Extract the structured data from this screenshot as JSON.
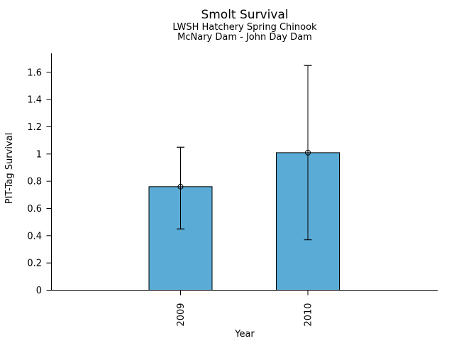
{
  "window": {
    "background": "#ffffff"
  },
  "chart_data": {
    "type": "bar",
    "title": "Smolt Survival",
    "subtitles": [
      "LWSH Hatchery Spring Chinook",
      "McNary Dam - John Day Dam"
    ],
    "xlabel": "Year",
    "ylabel": "PIT-Tag Survival",
    "categories": [
      "2009",
      "2010"
    ],
    "values": [
      0.76,
      1.01
    ],
    "error_low": [
      0.45,
      0.37
    ],
    "error_high": [
      1.05,
      1.65
    ],
    "marker": "open-circle",
    "y_tick_values": [
      0,
      0.2,
      0.4,
      0.6,
      0.8,
      1.0,
      1.2,
      1.4,
      1.6
    ],
    "y_tick_labels": [
      "0",
      "0.2",
      "0.4",
      "0.6",
      "0.8",
      "1",
      "1.2",
      "1.4",
      "1.6"
    ],
    "ylim": [
      0,
      1.74
    ],
    "grid": false,
    "legend": "none",
    "colors": {
      "bar_fill": "#5AACD6",
      "bar_border": "#000000",
      "error_bar": "#000000",
      "axis": "#000000",
      "text": "#000000"
    }
  }
}
